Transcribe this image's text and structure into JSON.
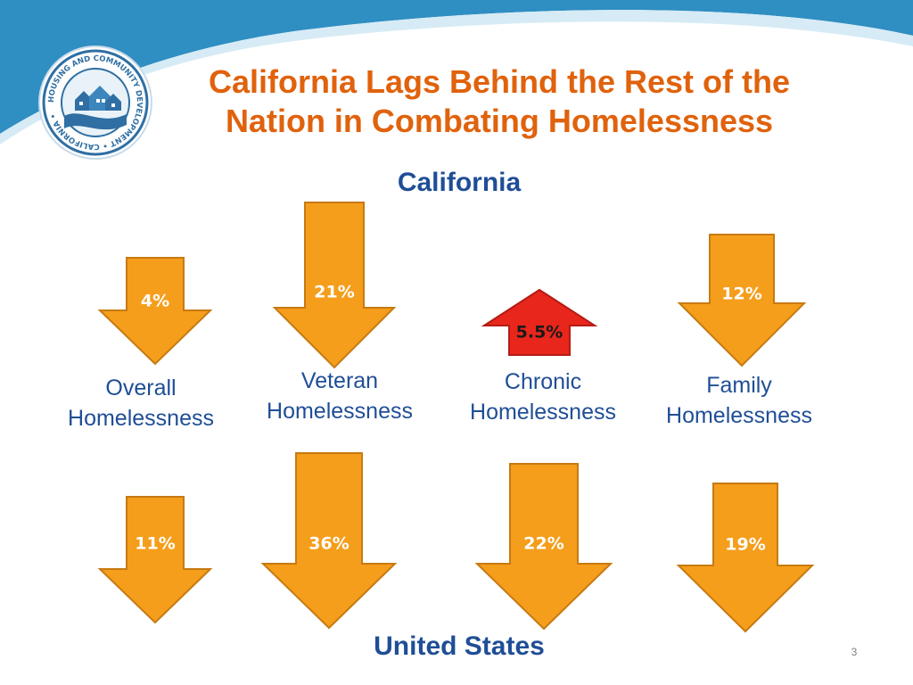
{
  "slide": {
    "title_line1": "California Lags Behind the Rest of the",
    "title_line2": "Nation in Combating Homelessness",
    "top_section_label": "California",
    "bottom_section_label": "United States",
    "slide_number": "3"
  },
  "logo": {
    "text": "HOUSING AND COMMUNITY DEVELOPMENT • CALIFORNIA •"
  },
  "categories": [
    {
      "line1": "Overall",
      "line2": "Homelessness"
    },
    {
      "line1": "Veteran",
      "line2": "Homelessness"
    },
    {
      "line1": "Chronic",
      "line2": "Homelessness"
    },
    {
      "line1": "Family",
      "line2": "Homelessness"
    }
  ],
  "california": [
    {
      "label": "4%",
      "value": 4,
      "direction": "down"
    },
    {
      "label": "21%",
      "value": 21,
      "direction": "down"
    },
    {
      "label": "5.5%",
      "value": 5.5,
      "direction": "up"
    },
    {
      "label": "12%",
      "value": 12,
      "direction": "down"
    }
  ],
  "united_states": [
    {
      "label": "11%",
      "value": 11,
      "direction": "down"
    },
    {
      "label": "36%",
      "value": 36,
      "direction": "down"
    },
    {
      "label": "22%",
      "value": 22,
      "direction": "down"
    },
    {
      "label": "19%",
      "value": 19,
      "direction": "down"
    }
  ],
  "colors": {
    "title": "#e0620c",
    "section_label": "#1f4e96",
    "arrow_down_fill": "#f59e1b",
    "arrow_down_stroke": "#c77a12",
    "arrow_up_fill": "#e8261c",
    "arrow_up_stroke": "#b51b14",
    "header_blue": "#2f8ec2",
    "header_light": "#d6ebf5"
  }
}
